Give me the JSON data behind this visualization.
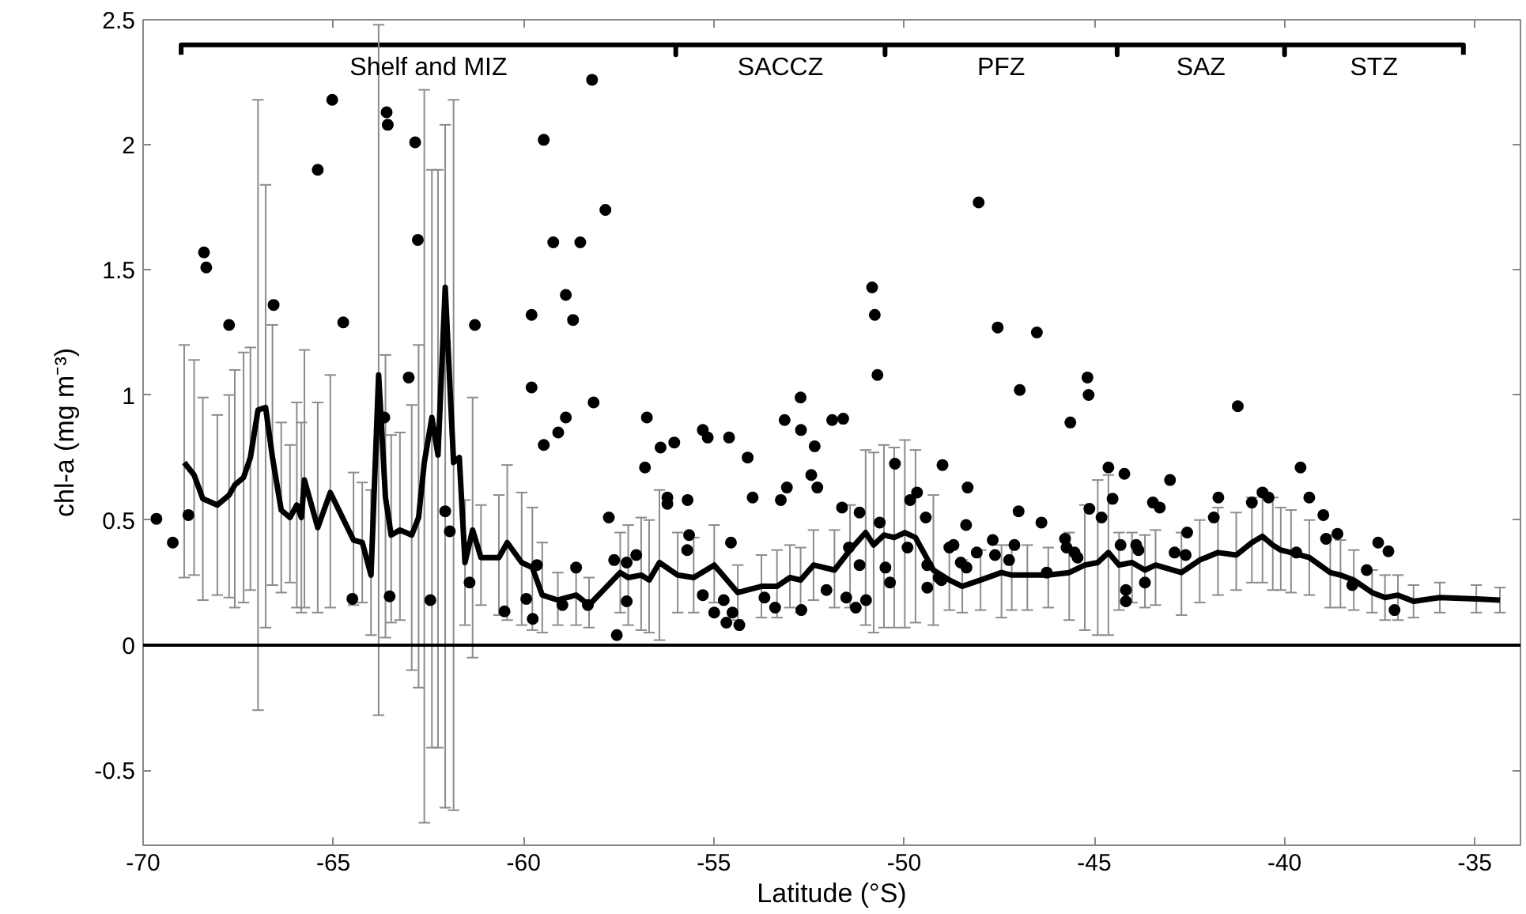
{
  "chart_data": {
    "type": "scatter",
    "xlabel": "Latitude (°S)",
    "ylabel": "chl-a (mg m⁻³)",
    "xlim": [
      -70,
      -33.8
    ],
    "ylim": [
      -0.8,
      2.5
    ],
    "xticks": [
      -70,
      -65,
      -60,
      -55,
      -50,
      -45,
      -40,
      -35
    ],
    "yticks": [
      -0.5,
      0,
      0.5,
      1,
      1.5,
      2,
      2.5
    ],
    "grid": false,
    "line_style": "solid",
    "ref_lines": [
      {
        "axis": "y",
        "value": 0,
        "color": "#000000"
      }
    ],
    "annotations": [
      "Shelf and MIZ",
      "SACCZ",
      "PFZ",
      "SAZ",
      "STZ"
    ],
    "series": [
      {
        "type": "line",
        "color": "#000000",
        "marker": "none",
        "x": [
          -69.0,
          -69.0,
          -56.0,
          -56.0,
          -56.0,
          -50.5,
          -50.5,
          -50.5,
          -44.4,
          -44.4,
          -44.4,
          -40.0,
          -40.0,
          -40.0,
          -35.3,
          -35.3
        ],
        "values": [
          2.36,
          2.4,
          2.4,
          2.36,
          2.4,
          2.4,
          2.36,
          2.4,
          2.4,
          2.36,
          2.4,
          2.4,
          2.36,
          2.4,
          2.4,
          2.36
        ]
      },
      {
        "color": "#000000",
        "marker": "circle",
        "x": [
          -69.65,
          -69.22,
          -68.81,
          -68.4,
          -68.34,
          -67.74,
          -66.57,
          -65.41,
          -65.03,
          -64.74,
          -64.5,
          -63.66,
          -63.6,
          -63.57,
          -63.52,
          -63.02,
          -62.85,
          -62.78,
          -62.45,
          -62.06,
          -61.94,
          -61.42,
          -61.28,
          -60.5,
          -59.93,
          -59.79,
          -59.79,
          -59.76,
          -59.65,
          -59.47,
          -59.47,
          -59.22,
          -59.09,
          -58.89,
          -58.89,
          -58.98,
          -58.2,
          -57.85,
          -58.51,
          -58.7,
          -58.16,
          -50.84,
          -50.77,
          -50.7,
          -48.04,
          -47.54,
          -46.96,
          -46.51,
          -58.62,
          -58.31,
          -57.76,
          -57.62,
          -57.55,
          -57.29,
          -57.29,
          -57.04,
          -56.81,
          -56.76,
          -56.4,
          -56.22,
          -56.22,
          -56.04,
          -55.69,
          -55.65,
          -55.7,
          -55.29,
          -55.16,
          -55.29,
          -54.99,
          -54.6,
          -54.55,
          -54.74,
          -54.51,
          -54.67,
          -54.33,
          -54.11,
          -53.98,
          -53.67,
          -53.39,
          -53.24,
          -53.08,
          -53.14,
          -52.72,
          -52.71,
          -52.7,
          -52.35,
          -52.44,
          -52.28,
          -52.04,
          -51.89,
          -51.6,
          -51.63,
          -51.52,
          -51.45,
          -51.17,
          -51.17,
          -51.27,
          -51.0,
          -50.64,
          -50.49,
          -50.37,
          -50.24,
          -49.91,
          -49.84,
          -49.66,
          -49.43,
          -49.39,
          -49.39,
          -49.09,
          -48.99,
          -49.02,
          -48.81,
          -48.7,
          -48.51,
          -48.36,
          -48.37,
          -48.33,
          -48.09,
          -47.67,
          -47.61,
          -47.24,
          -47.1,
          -46.99,
          -46.39,
          -46.25,
          -45.63,
          -45.18,
          -45.15,
          -45.77,
          -45.73,
          -45.52,
          -45.44,
          -45.13,
          -44.81,
          -44.63,
          -44.52,
          -44.21,
          -44.31,
          -44.17,
          -44.17,
          -43.9,
          -43.84,
          -43.67,
          -43.46,
          -43.28,
          -43.01,
          -42.89,
          -42.6,
          -42.56,
          -41.86,
          -41.74,
          -41.23,
          -40.86,
          -40.58,
          -40.42,
          -39.58,
          -39.35,
          -39.69,
          -38.98,
          -38.91,
          -38.61,
          -38.22,
          -37.84,
          -37.54,
          -37.27,
          -37.11
        ],
        "values": [
          0.505,
          0.41,
          0.52,
          1.57,
          1.51,
          1.28,
          1.36,
          1.9,
          2.18,
          1.29,
          0.185,
          0.91,
          2.13,
          2.08,
          0.195,
          1.07,
          2.01,
          1.62,
          0.18,
          0.535,
          0.455,
          0.25,
          1.28,
          0.135,
          0.185,
          1.32,
          1.03,
          0.105,
          0.32,
          2.02,
          0.8,
          1.61,
          0.85,
          1.4,
          0.91,
          0.16,
          2.26,
          1.74,
          1.61,
          1.3,
          0.97,
          1.43,
          1.32,
          1.08,
          1.77,
          1.27,
          1.02,
          1.25,
          0.31,
          0.16,
          0.51,
          0.34,
          0.04,
          0.175,
          0.33,
          0.36,
          0.71,
          0.91,
          0.79,
          0.59,
          0.565,
          0.81,
          0.58,
          0.44,
          0.38,
          0.86,
          0.83,
          0.2,
          0.13,
          0.83,
          0.41,
          0.18,
          0.13,
          0.09,
          0.08,
          0.75,
          0.59,
          0.19,
          0.15,
          0.58,
          0.63,
          0.9,
          0.99,
          0.86,
          0.14,
          0.795,
          0.68,
          0.63,
          0.22,
          0.9,
          0.905,
          0.55,
          0.19,
          0.39,
          0.53,
          0.32,
          0.15,
          0.18,
          0.49,
          0.31,
          0.25,
          0.725,
          0.39,
          0.58,
          0.61,
          0.51,
          0.32,
          0.23,
          0.27,
          0.72,
          0.26,
          0.39,
          0.4,
          0.33,
          0.31,
          0.48,
          0.63,
          0.37,
          0.42,
          0.36,
          0.34,
          0.4,
          0.535,
          0.49,
          0.29,
          0.89,
          1.07,
          1.0,
          0.425,
          0.39,
          0.37,
          0.35,
          0.545,
          0.51,
          0.71,
          0.585,
          0.685,
          0.4,
          0.22,
          0.175,
          0.4,
          0.38,
          0.25,
          0.57,
          0.55,
          0.66,
          0.37,
          0.36,
          0.45,
          0.51,
          0.59,
          0.955,
          0.57,
          0.61,
          0.59,
          0.71,
          0.59,
          0.37,
          0.52,
          0.425,
          0.445,
          0.24,
          0.3,
          0.41,
          0.375,
          0.14
        ]
      },
      {
        "type": "line",
        "color": "#000000",
        "marker": "none",
        "x": [
          -68.92,
          -68.66,
          -68.43,
          -68.05,
          -67.74,
          -67.59,
          -67.36,
          -67.18,
          -66.98,
          -66.78,
          -66.6,
          -66.37,
          -66.14,
          -65.96,
          -65.84,
          -65.76,
          -65.41,
          -65.08,
          -64.47,
          -64.24,
          -64.01,
          -63.81,
          -63.63,
          -63.48,
          -63.25,
          -62.94,
          -62.76,
          -62.61,
          -62.41,
          -62.25,
          -62.06,
          -61.84,
          -61.69,
          -61.54,
          -61.34,
          -61.12,
          -60.65,
          -60.43,
          -60.05,
          -59.77,
          -59.51,
          -59.1,
          -58.62,
          -58.28,
          -57.46,
          -57.25,
          -56.91,
          -56.7,
          -56.43,
          -55.95,
          -55.53,
          -54.99,
          -54.37,
          -53.75,
          -53.34,
          -53.0,
          -52.72,
          -52.38,
          -51.83,
          -51.42,
          -51.01,
          -50.8,
          -50.53,
          -50.26,
          -49.98,
          -49.7,
          -49.23,
          -48.81,
          -48.47,
          -47.99,
          -47.44,
          -47.17,
          -46.76,
          -46.21,
          -45.66,
          -45.25,
          -44.91,
          -44.63,
          -44.35,
          -44.01,
          -43.67,
          -43.39,
          -42.71,
          -42.23,
          -41.75,
          -41.27,
          -40.86,
          -40.58,
          -40.31,
          -40.1,
          -39.83,
          -39.35,
          -38.8,
          -38.53,
          -38.18,
          -37.7,
          -37.36,
          -37.02,
          -36.61,
          -35.92,
          -34.96,
          -34.34
        ],
        "values": [
          0.73,
          0.68,
          0.585,
          0.56,
          0.6,
          0.64,
          0.67,
          0.75,
          0.94,
          0.95,
          0.75,
          0.54,
          0.51,
          0.56,
          0.51,
          0.66,
          0.47,
          0.61,
          0.42,
          0.41,
          0.28,
          1.08,
          0.59,
          0.44,
          0.46,
          0.44,
          0.51,
          0.73,
          0.91,
          0.76,
          1.43,
          0.73,
          0.75,
          0.33,
          0.46,
          0.35,
          0.35,
          0.41,
          0.33,
          0.31,
          0.2,
          0.18,
          0.2,
          0.16,
          0.29,
          0.27,
          0.28,
          0.26,
          0.33,
          0.28,
          0.27,
          0.32,
          0.21,
          0.235,
          0.235,
          0.27,
          0.26,
          0.32,
          0.3,
          0.38,
          0.45,
          0.4,
          0.44,
          0.43,
          0.45,
          0.43,
          0.3,
          0.26,
          0.235,
          0.26,
          0.29,
          0.28,
          0.28,
          0.28,
          0.29,
          0.32,
          0.33,
          0.37,
          0.32,
          0.33,
          0.3,
          0.32,
          0.29,
          0.34,
          0.37,
          0.36,
          0.41,
          0.435,
          0.4,
          0.38,
          0.37,
          0.35,
          0.29,
          0.28,
          0.26,
          0.21,
          0.19,
          0.2,
          0.175,
          0.19,
          0.185,
          0.18
        ],
        "errors": [
          [
            0.27,
            1.2
          ],
          [
            0.28,
            1.14
          ],
          [
            0.18,
            0.99
          ],
          [
            0.2,
            0.92
          ],
          [
            0.19,
            1.0
          ],
          [
            0.15,
            1.1
          ],
          [
            0.17,
            1.17
          ],
          [
            0.22,
            1.19
          ],
          [
            -0.26,
            2.18
          ],
          [
            0.07,
            1.84
          ],
          [
            0.24,
            1.28
          ],
          [
            0.21,
            0.89
          ],
          [
            0.25,
            0.8
          ],
          [
            0.15,
            0.97
          ],
          [
            0.13,
            0.89
          ],
          [
            0.15,
            1.18
          ],
          [
            0.13,
            0.97
          ],
          [
            0.15,
            1.08
          ],
          [
            0.16,
            0.69
          ],
          [
            0.17,
            0.65
          ],
          [
            0.04,
            0.62
          ],
          [
            -0.28,
            2.48
          ],
          [
            0.03,
            1.16
          ],
          [
            0.09,
            0.84
          ],
          [
            0.1,
            0.85
          ],
          [
            -0.1,
            0.96
          ],
          [
            -0.17,
            1.2
          ],
          [
            -0.71,
            2.22
          ],
          [
            -0.41,
            1.9
          ],
          [
            -0.41,
            1.9
          ],
          [
            -0.65,
            2.08
          ],
          [
            -0.66,
            2.18
          ],
          null,
          [
            0.08,
            0.58
          ],
          [
            -0.05,
            0.99
          ],
          [
            0.16,
            0.56
          ],
          [
            0.12,
            0.6
          ],
          [
            0.1,
            0.72
          ],
          [
            0.08,
            0.61
          ],
          [
            0.06,
            0.55
          ],
          [
            0.05,
            0.41
          ],
          [
            0.08,
            0.29
          ],
          [
            0.08,
            0.32
          ],
          [
            0.07,
            0.27
          ],
          [
            0.13,
            0.45
          ],
          [
            0.08,
            0.48
          ],
          [
            0.06,
            0.51
          ],
          [
            0.05,
            0.5
          ],
          [
            0.02,
            0.62
          ],
          [
            0.13,
            0.45
          ],
          [
            0.13,
            0.43
          ],
          [
            0.17,
            0.48
          ],
          [
            0.1,
            0.32
          ],
          [
            0.11,
            0.36
          ],
          [
            0.11,
            0.38
          ],
          [
            0.15,
            0.4
          ],
          [
            0.13,
            0.39
          ],
          [
            0.18,
            0.46
          ],
          [
            0.15,
            0.46
          ],
          [
            0.15,
            0.56
          ],
          [
            0.08,
            0.78
          ],
          [
            0.05,
            0.77
          ],
          [
            0.07,
            0.8
          ],
          [
            0.07,
            0.79
          ],
          [
            0.07,
            0.82
          ],
          [
            0.09,
            0.78
          ],
          [
            0.08,
            0.6
          ],
          [
            0.14,
            0.4
          ],
          [
            0.13,
            0.34
          ],
          [
            0.14,
            0.38
          ],
          [
            0.11,
            0.4
          ],
          [
            0.14,
            0.4
          ],
          [
            0.14,
            0.4
          ],
          [
            0.15,
            0.39
          ],
          [
            0.1,
            0.45
          ],
          [
            0.06,
            0.56
          ],
          [
            0.04,
            0.66
          ],
          [
            0.04,
            0.68
          ],
          [
            0.14,
            0.45
          ],
          [
            0.17,
            0.45
          ],
          [
            0.15,
            0.44
          ],
          [
            0.16,
            0.46
          ],
          [
            0.12,
            0.45
          ],
          [
            0.17,
            0.5
          ],
          [
            0.2,
            0.55
          ],
          [
            0.22,
            0.53
          ],
          [
            0.25,
            0.59
          ],
          [
            0.25,
            0.62
          ],
          [
            0.22,
            0.59
          ],
          [
            0.22,
            0.55
          ],
          [
            0.21,
            0.54
          ],
          [
            0.2,
            0.5
          ],
          [
            0.15,
            0.44
          ],
          [
            0.15,
            0.42
          ],
          [
            0.14,
            0.38
          ],
          [
            0.13,
            0.3
          ],
          [
            0.1,
            0.28
          ],
          [
            0.1,
            0.28
          ],
          [
            0.11,
            0.24
          ],
          [
            0.13,
            0.25
          ],
          [
            0.13,
            0.24
          ],
          [
            0.13,
            0.23
          ]
        ]
      }
    ]
  }
}
